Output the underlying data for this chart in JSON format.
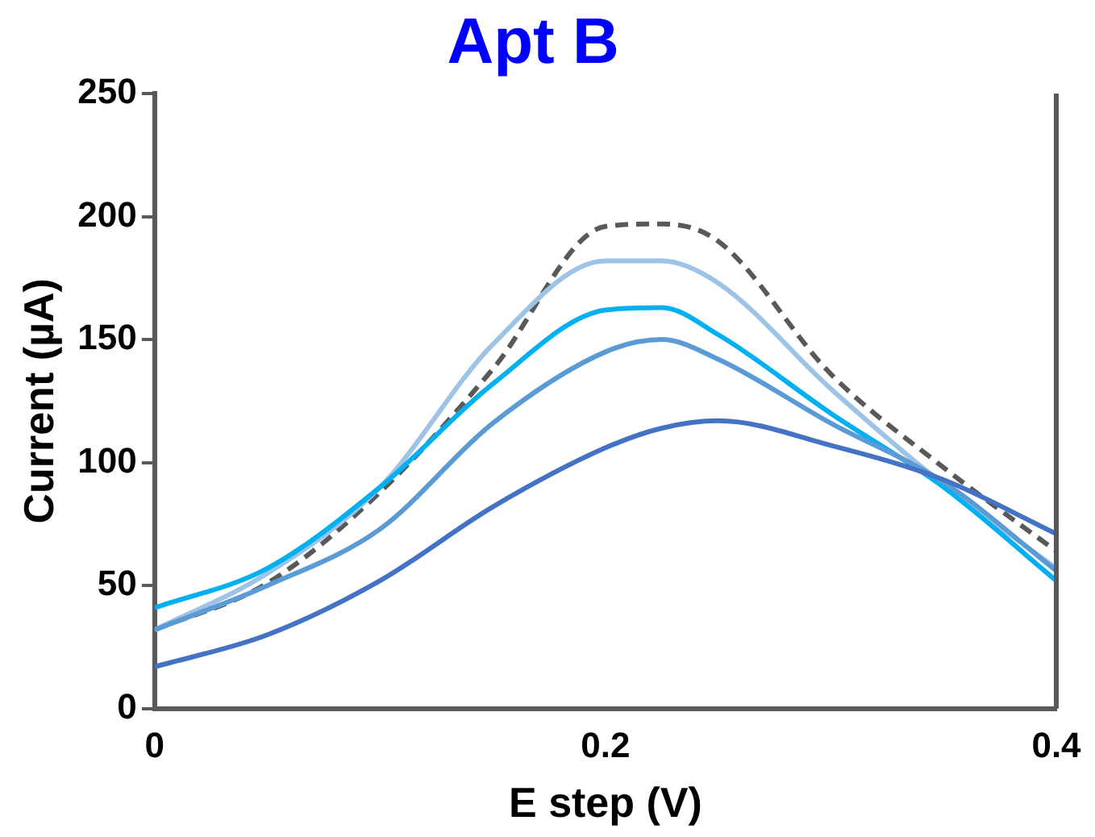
{
  "chart_data": {
    "type": "line",
    "title": "Apt B",
    "xlabel": "E step (V)",
    "ylabel": "Current (µA)",
    "x": [
      0,
      0.05,
      0.1,
      0.15,
      0.2,
      0.225,
      0.25,
      0.3,
      0.35,
      0.4
    ],
    "xlim": [
      0,
      0.4
    ],
    "xticks": [
      0,
      0.2,
      0.4
    ],
    "ylim": [
      0,
      250
    ],
    "yticks": [
      0,
      50,
      100,
      150,
      200,
      250
    ],
    "grid": false,
    "legend": false,
    "marker": "none",
    "series": [
      {
        "color": "#4472c4",
        "values": [
          17,
          30,
          52,
          82,
          106,
          114,
          117,
          107,
          93,
          71
        ]
      },
      {
        "color": "#5b9bd5",
        "values": [
          32,
          50,
          73,
          116,
          145,
          150,
          142,
          116,
          92,
          56
        ]
      },
      {
        "color": "#00b0f0",
        "values": [
          41,
          57,
          90,
          132,
          162,
          163,
          152,
          120,
          90,
          52
        ]
      },
      {
        "color": "#9dc3e6",
        "values": [
          32,
          55,
          90,
          148,
          182,
          182,
          173,
          130,
          91,
          57
        ]
      },
      {
        "color": "#595959",
        "line_style": "dashed",
        "values": [
          32,
          51,
          88,
          138,
          196,
          197,
          190,
          136,
          98,
          64
        ]
      }
    ]
  }
}
